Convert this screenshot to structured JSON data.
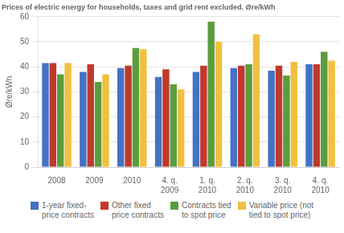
{
  "chart_data": {
    "type": "bar",
    "title": "Prices of electric energy for households, taxes and grid rent excluded. Øre/kWh",
    "ylabel": "Øre/kWh",
    "categories": [
      "2008",
      "2009",
      "2010",
      "4. q.\n2009",
      "1. q.\n2010",
      "2. q.\n2010",
      "3. q.\n2010",
      "4. q.\n2010"
    ],
    "series": [
      {
        "name": "1-year fixed-\nprice contracts",
        "color": "#4472C4",
        "values": [
          41.5,
          38,
          39.5,
          36,
          38,
          39.5,
          38.5,
          41
        ]
      },
      {
        "name": "Other fixed\nprice contracts",
        "color": "#C0392B",
        "values": [
          41.5,
          41,
          40.5,
          39,
          40.5,
          40.5,
          40.5,
          41
        ]
      },
      {
        "name": "Contracts tied\nto spot price",
        "color": "#5B9C3E",
        "values": [
          37,
          34,
          47.5,
          33,
          58,
          41,
          36.5,
          46
        ]
      },
      {
        "name": "Variable price (not\ntied to spot price)",
        "color": "#F0C040",
        "values": [
          41.5,
          37,
          47,
          31,
          50,
          53,
          42,
          42.5
        ]
      }
    ],
    "ylim": [
      0,
      60
    ],
    "yticks": [
      0,
      10,
      20,
      30,
      40,
      50,
      60
    ],
    "grid": true,
    "legend": "bottom"
  }
}
